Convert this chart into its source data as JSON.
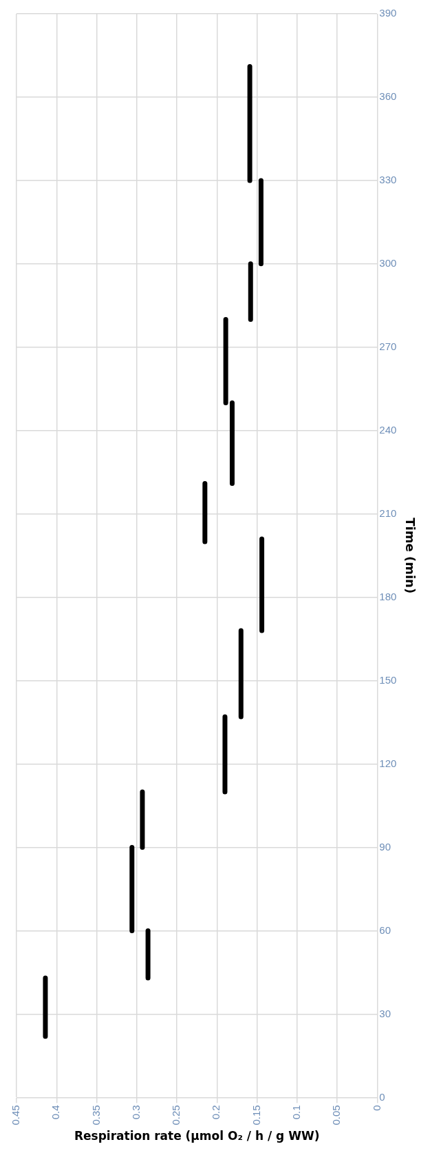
{
  "chart_data": {
    "type": "line",
    "xlabel": "Respiration rate (μmol O₂ / h / g WW)",
    "ylabel": "Time (min)",
    "xlim": [
      0.45,
      0
    ],
    "xticks": [
      0.45,
      0.4,
      0.35,
      0.3,
      0.25,
      0.2,
      0.15,
      0.1,
      0.05,
      0
    ],
    "ylim": [
      0,
      390
    ],
    "yticks": [
      0,
      30,
      60,
      90,
      120,
      150,
      180,
      210,
      240,
      270,
      300,
      330,
      360,
      390
    ],
    "grid": true,
    "legend": false,
    "marker": "none",
    "series": [
      {
        "color": "#000000",
        "x": [
          0.414,
          0.414
        ],
        "values": [
          22,
          43
        ]
      },
      {
        "color": "#000000",
        "x": [
          0.286,
          0.286
        ],
        "values": [
          43,
          60
        ]
      },
      {
        "color": "#000000",
        "x": [
          0.306,
          0.306
        ],
        "values": [
          60,
          90
        ]
      },
      {
        "color": "#000000",
        "x": [
          0.293,
          0.293
        ],
        "values": [
          90,
          110
        ]
      },
      {
        "color": "#000000",
        "x": [
          0.19,
          0.19
        ],
        "values": [
          110,
          137
        ]
      },
      {
        "color": "#000000",
        "x": [
          0.17,
          0.17
        ],
        "values": [
          137,
          168
        ]
      },
      {
        "color": "#000000",
        "x": [
          0.144,
          0.144
        ],
        "values": [
          168,
          201
        ]
      },
      {
        "color": "#000000",
        "x": [
          0.215,
          0.215
        ],
        "values": [
          200,
          221
        ]
      },
      {
        "color": "#000000",
        "x": [
          0.181,
          0.181
        ],
        "values": [
          221,
          250
        ]
      },
      {
        "color": "#000000",
        "x": [
          0.189,
          0.189
        ],
        "values": [
          250,
          280
        ]
      },
      {
        "color": "#000000",
        "x": [
          0.158,
          0.158
        ],
        "values": [
          280,
          300
        ]
      },
      {
        "color": "#000000",
        "x": [
          0.145,
          0.145
        ],
        "values": [
          300,
          330
        ]
      },
      {
        "color": "#000000",
        "x": [
          0.159,
          0.159
        ],
        "values": [
          330,
          371
        ]
      }
    ]
  }
}
